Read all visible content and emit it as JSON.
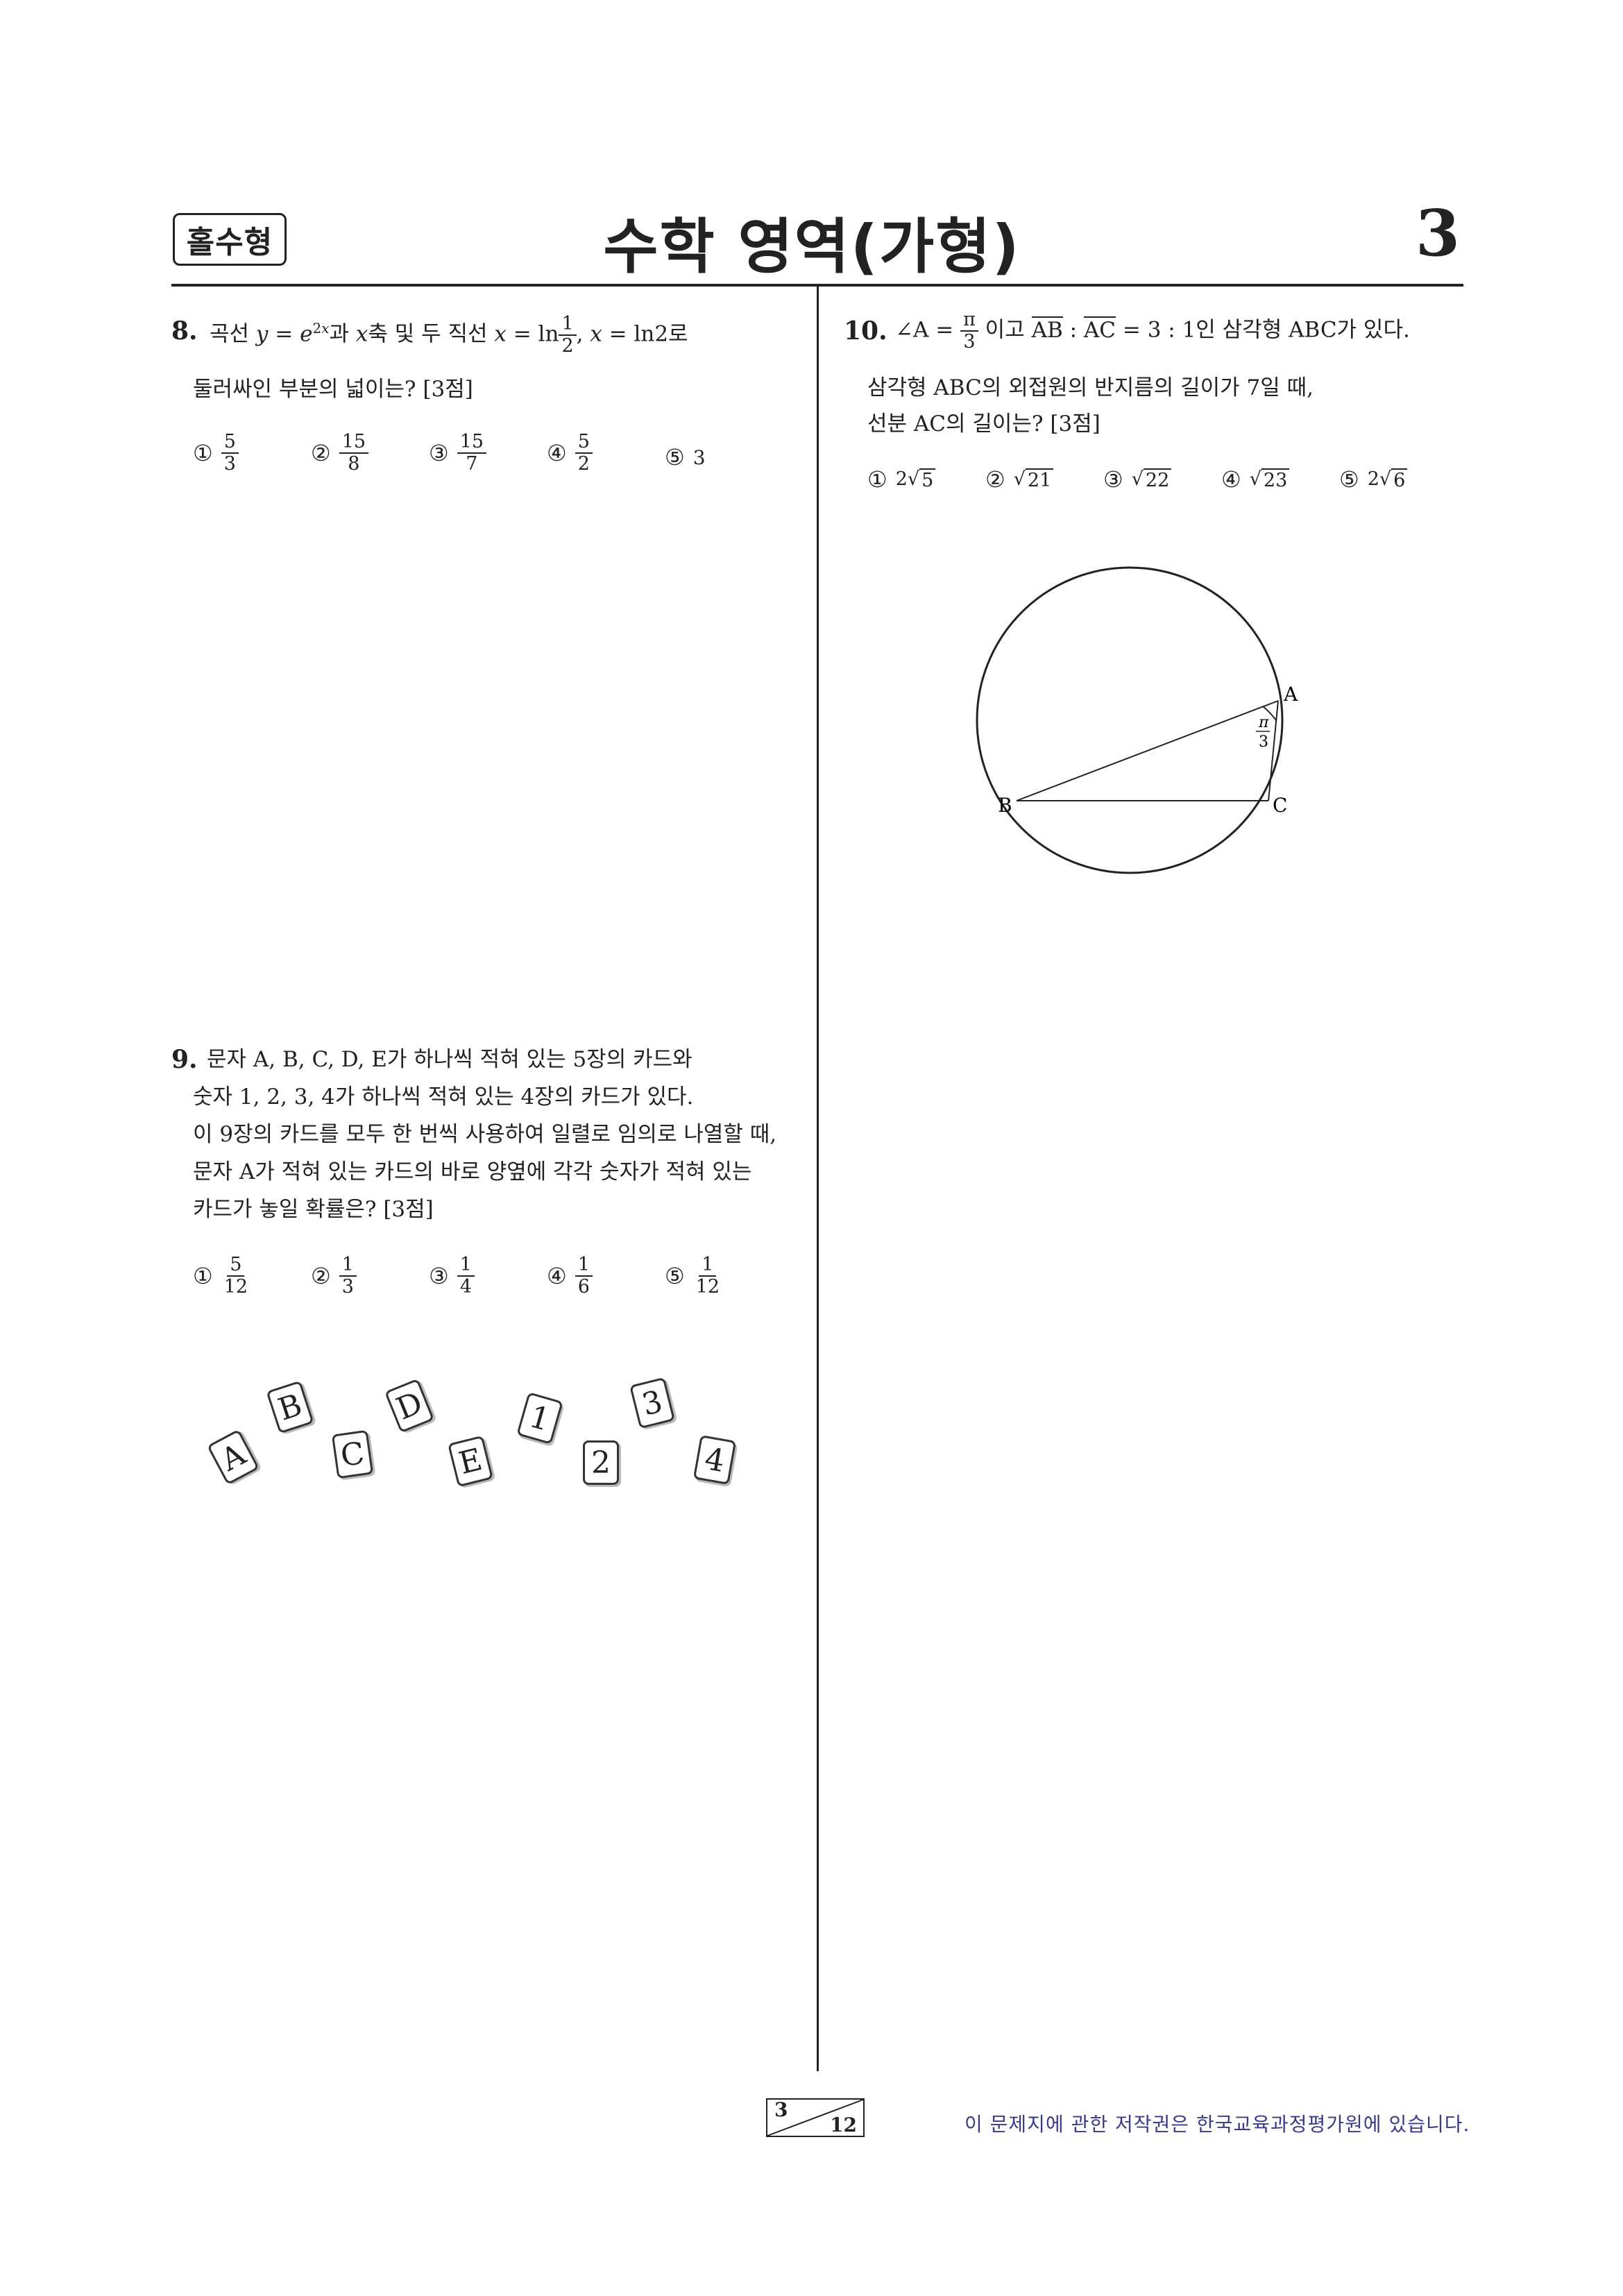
{
  "header": {
    "badge": "홀수형",
    "title": "수학 영역(가형)",
    "page_number": "3"
  },
  "q8": {
    "number": "8.",
    "line1_prefix": "곡선",
    "line1_mid1": "과",
    "line1_mid2": "축 및 두 직선",
    "line1_suffix": "로",
    "line2": "둘러싸인 부분의 넓이는? [3점]",
    "choices": [
      {
        "mark": "①",
        "num": "5",
        "den": "3"
      },
      {
        "mark": "②",
        "num": "15",
        "den": "8"
      },
      {
        "mark": "③",
        "num": "15",
        "den": "7"
      },
      {
        "mark": "④",
        "num": "5",
        "den": "2"
      },
      {
        "mark": "⑤",
        "value": "3"
      }
    ]
  },
  "q9": {
    "number": "9.",
    "lines": [
      "문자 A, B, C, D, E가 하나씩 적혀 있는 5장의 카드와",
      "숫자 1, 2, 3, 4가 하나씩 적혀 있는 4장의 카드가 있다.",
      "이 9장의 카드를 모두 한 번씩 사용하여 일렬로 임의로 나열할 때,",
      "문자 A가 적혀 있는 카드의 바로 양옆에 각각 숫자가 적혀 있는",
      "카드가 놓일 확률은? [3점]"
    ],
    "choices": [
      {
        "mark": "①",
        "num": "5",
        "den": "12"
      },
      {
        "mark": "②",
        "num": "1",
        "den": "3"
      },
      {
        "mark": "③",
        "num": "1",
        "den": "4"
      },
      {
        "mark": "④",
        "num": "1",
        "den": "6"
      },
      {
        "mark": "⑤",
        "num": "1",
        "den": "12"
      }
    ],
    "cards": [
      "A",
      "B",
      "C",
      "D",
      "E",
      "1",
      "2",
      "3",
      "4"
    ]
  },
  "q10": {
    "number": "10.",
    "line1_a": "∠A =",
    "line1_b": "이고",
    "line1_c": "인 삼각형 ABC가 있다.",
    "line2": "삼각형 ABC의 외접원의 반지름의 길이가 7일 때,",
    "line3": "선분 AC의 길이는? [3점]",
    "choices": [
      {
        "mark": "①",
        "coef": "2",
        "rad": "5"
      },
      {
        "mark": "②",
        "coef": "",
        "rad": "21"
      },
      {
        "mark": "③",
        "coef": "",
        "rad": "22"
      },
      {
        "mark": "④",
        "coef": "",
        "rad": "23"
      },
      {
        "mark": "⑤",
        "coef": "2",
        "rad": "6"
      }
    ],
    "figure": {
      "label_A": "A",
      "label_B": "B",
      "label_C": "C",
      "angle_num": "π",
      "angle_den": "3"
    }
  },
  "footer": {
    "page": "3",
    "total": "12",
    "copyright": "이 문제지에 관한 저작권은 한국교육과정평가원에 있습니다."
  }
}
